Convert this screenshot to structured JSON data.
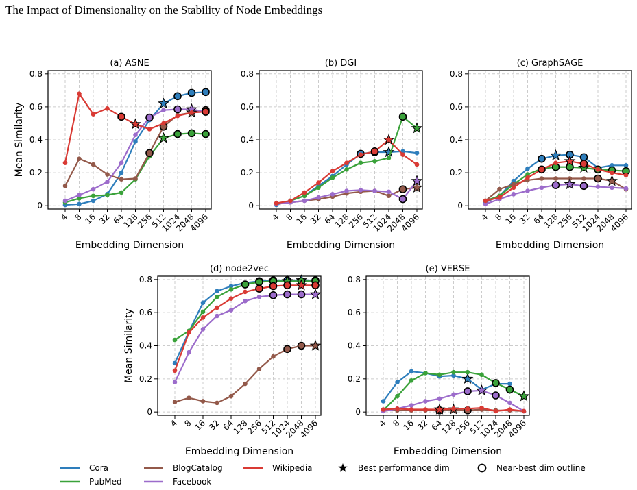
{
  "title": "The Impact of Dimensionality on the Stability of Node Embeddings",
  "legend": {
    "best": "Best performance dim",
    "near_best": "Near-best dim outline"
  },
  "chart_data": [
    {
      "type": "line",
      "title": "(a) ASNE",
      "x_label": "Embedding Dimension",
      "y_label": "Mean Similarity",
      "categories": [
        "4",
        "8",
        "16",
        "32",
        "64",
        "128",
        "256",
        "512",
        "1024",
        "2048",
        "4096"
      ],
      "ylim": [
        -0.02,
        0.82
      ],
      "yticks": [
        0,
        0.2,
        0.4,
        0.6,
        0.8
      ],
      "grid": true,
      "series": [
        {
          "name": "Cora",
          "color": "#2e7ebc",
          "values": [
            0.005,
            0.01,
            0.03,
            0.07,
            0.2,
            0.39,
            0.52,
            0.62,
            0.665,
            0.685,
            0.69
          ],
          "best": 7,
          "near_best": [
            8,
            9,
            10
          ]
        },
        {
          "name": "PubMed",
          "color": "#3aa23a",
          "values": [
            0.02,
            0.045,
            0.06,
            0.065,
            0.08,
            0.16,
            0.3,
            0.41,
            0.435,
            0.44,
            0.435
          ],
          "best": 7,
          "near_best": [
            8,
            9,
            10
          ]
        },
        {
          "name": "BlogCatalog",
          "color": "#93594a",
          "values": [
            0.12,
            0.285,
            0.25,
            0.19,
            0.16,
            0.165,
            0.32,
            0.48,
            0.55,
            0.565,
            0.58
          ],
          "best": 9,
          "near_best": [
            6,
            7,
            10
          ]
        },
        {
          "name": "Facebook",
          "color": "#9c6ccb",
          "values": [
            0.03,
            0.065,
            0.1,
            0.145,
            0.26,
            0.43,
            0.535,
            0.58,
            0.585,
            0.585,
            0.57
          ],
          "best": 9,
          "near_best": [
            6,
            8
          ]
        },
        {
          "name": "Wikipedia",
          "color": "#d93a34",
          "values": [
            0.26,
            0.68,
            0.555,
            0.59,
            0.54,
            0.495,
            0.465,
            0.5,
            0.545,
            0.565,
            0.57
          ],
          "best": 5,
          "near_best": [
            4,
            10
          ]
        }
      ]
    },
    {
      "type": "line",
      "title": "(b) DGI",
      "x_label": "Embedding Dimension",
      "categories": [
        "4",
        "8",
        "16",
        "32",
        "64",
        "128",
        "256",
        "512",
        "1024",
        "2048",
        "4096"
      ],
      "ylim": [
        -0.02,
        0.82
      ],
      "yticks": [
        0,
        0.2,
        0.4,
        0.6,
        0.8
      ],
      "grid": true,
      "series": [
        {
          "values": [
            0.005,
            0.03,
            0.06,
            0.12,
            0.18,
            0.25,
            0.315,
            0.325,
            0.325,
            0.33,
            0.32
          ],
          "best": 8,
          "near_best": [
            6,
            7
          ]
        },
        {
          "values": [
            0.01,
            0.03,
            0.06,
            0.11,
            0.17,
            0.22,
            0.26,
            0.27,
            0.29,
            0.54,
            0.47
          ],
          "best": 10,
          "near_best": [
            9
          ]
        },
        {
          "values": [
            0.01,
            0.02,
            0.03,
            0.04,
            0.055,
            0.075,
            0.085,
            0.09,
            0.06,
            0.1,
            0.11
          ],
          "best": 10,
          "near_best": [
            9
          ]
        },
        {
          "values": [
            0.01,
            0.02,
            0.03,
            0.05,
            0.07,
            0.09,
            0.095,
            0.09,
            0.085,
            0.04,
            0.15
          ],
          "best": 10,
          "near_best": [
            9
          ]
        },
        {
          "values": [
            0.015,
            0.03,
            0.08,
            0.14,
            0.21,
            0.26,
            0.31,
            0.33,
            0.4,
            0.31,
            0.25
          ],
          "best": 8,
          "near_best": [
            7
          ]
        }
      ]
    },
    {
      "type": "line",
      "title": "(c) GraphSAGE",
      "x_label": "Embedding Dimension",
      "categories": [
        "4",
        "8",
        "16",
        "32",
        "64",
        "128",
        "256",
        "512",
        "1024",
        "2048",
        "4096"
      ],
      "ylim": [
        -0.02,
        0.82
      ],
      "yticks": [
        0,
        0.2,
        0.4,
        0.6,
        0.8
      ],
      "grid": true,
      "series": [
        {
          "values": [
            0.02,
            0.06,
            0.15,
            0.225,
            0.285,
            0.305,
            0.31,
            0.295,
            0.23,
            0.245,
            0.245
          ],
          "best": 5,
          "near_best": [
            4,
            6,
            7
          ]
        },
        {
          "values": [
            0.03,
            0.06,
            0.13,
            0.19,
            0.225,
            0.235,
            0.235,
            0.23,
            0.22,
            0.215,
            0.21
          ],
          "best": 7,
          "near_best": [
            5,
            6,
            8,
            9,
            10
          ]
        },
        {
          "values": [
            0.03,
            0.1,
            0.13,
            0.155,
            0.165,
            0.165,
            0.165,
            0.165,
            0.165,
            0.15,
            0.1
          ],
          "best": 9,
          "near_best": [
            8
          ]
        },
        {
          "values": [
            0.01,
            0.04,
            0.07,
            0.09,
            0.11,
            0.125,
            0.13,
            0.12,
            0.115,
            0.11,
            0.105
          ],
          "best": 6,
          "near_best": [
            5,
            7
          ]
        },
        {
          "values": [
            0.03,
            0.05,
            0.11,
            0.17,
            0.22,
            0.26,
            0.27,
            0.255,
            0.22,
            0.2,
            0.185
          ],
          "best": 6,
          "near_best": [
            4,
            7
          ]
        }
      ]
    },
    {
      "type": "line",
      "title": "(d) node2vec",
      "x_label": "Embedding Dimension",
      "y_label": "Mean Similarity",
      "categories": [
        "4",
        "8",
        "16",
        "32",
        "64",
        "128",
        "256",
        "512",
        "1024",
        "2048",
        "4096"
      ],
      "ylim": [
        -0.02,
        0.82
      ],
      "yticks": [
        0,
        0.2,
        0.4,
        0.6,
        0.8
      ],
      "grid": true,
      "series": [
        {
          "values": [
            0.295,
            0.485,
            0.66,
            0.73,
            0.76,
            0.78,
            0.79,
            0.795,
            0.795,
            0.795,
            0.795
          ],
          "best": 9,
          "near_best": [
            6,
            7,
            8,
            10
          ]
        },
        {
          "values": [
            0.435,
            0.49,
            0.605,
            0.695,
            0.74,
            0.77,
            0.785,
            0.79,
            0.79,
            0.79,
            0.79
          ],
          "best": 8,
          "near_best": [
            5,
            6,
            7,
            9,
            10
          ]
        },
        {
          "values": [
            0.06,
            0.085,
            0.065,
            0.055,
            0.095,
            0.17,
            0.26,
            0.335,
            0.38,
            0.4,
            0.4
          ],
          "best": 10,
          "near_best": [
            8,
            9
          ]
        },
        {
          "values": [
            0.18,
            0.36,
            0.5,
            0.58,
            0.615,
            0.67,
            0.695,
            0.705,
            0.71,
            0.71,
            0.71
          ],
          "best": 10,
          "near_best": [
            7,
            8,
            9
          ]
        },
        {
          "values": [
            0.25,
            0.48,
            0.57,
            0.63,
            0.685,
            0.725,
            0.745,
            0.76,
            0.765,
            0.765,
            0.765
          ],
          "best": 9,
          "near_best": [
            6,
            7,
            8,
            10
          ]
        }
      ]
    },
    {
      "type": "line",
      "title": "(e) VERSE",
      "x_label": "Embedding Dimension",
      "categories": [
        "4",
        "8",
        "16",
        "32",
        "64",
        "128",
        "256",
        "512",
        "1024",
        "2048",
        "4096"
      ],
      "ylim": [
        -0.02,
        0.82
      ],
      "yticks": [
        0,
        0.2,
        0.4,
        0.6,
        0.8
      ],
      "grid": true,
      "series": [
        {
          "values": [
            0.065,
            0.18,
            0.245,
            0.235,
            0.215,
            0.22,
            0.2,
            0.135,
            0.17,
            0.17,
            null
          ],
          "best": 6,
          "near_best": []
        },
        {
          "values": [
            0.01,
            0.095,
            0.19,
            0.235,
            0.225,
            0.24,
            0.24,
            0.225,
            0.175,
            0.135,
            0.095
          ],
          "best": 10,
          "near_best": [
            8,
            9
          ]
        },
        {
          "values": [
            0.01,
            0.01,
            0.01,
            0.01,
            0.01,
            0.015,
            0.01,
            0.015,
            0.01,
            0.01,
            0.005
          ],
          "best": 5,
          "near_best": [
            4,
            6
          ]
        },
        {
          "values": [
            0.005,
            0.02,
            0.04,
            0.065,
            0.08,
            0.105,
            0.125,
            0.13,
            0.1,
            0.055,
            0.005
          ],
          "best": 7,
          "near_best": [
            6,
            8
          ]
        },
        {
          "values": [
            0.015,
            0.02,
            0.015,
            0.015,
            0.015,
            0.02,
            0.02,
            0.025,
            0.005,
            0.015,
            0.005
          ],
          "best": 4,
          "near_best": []
        }
      ]
    }
  ]
}
